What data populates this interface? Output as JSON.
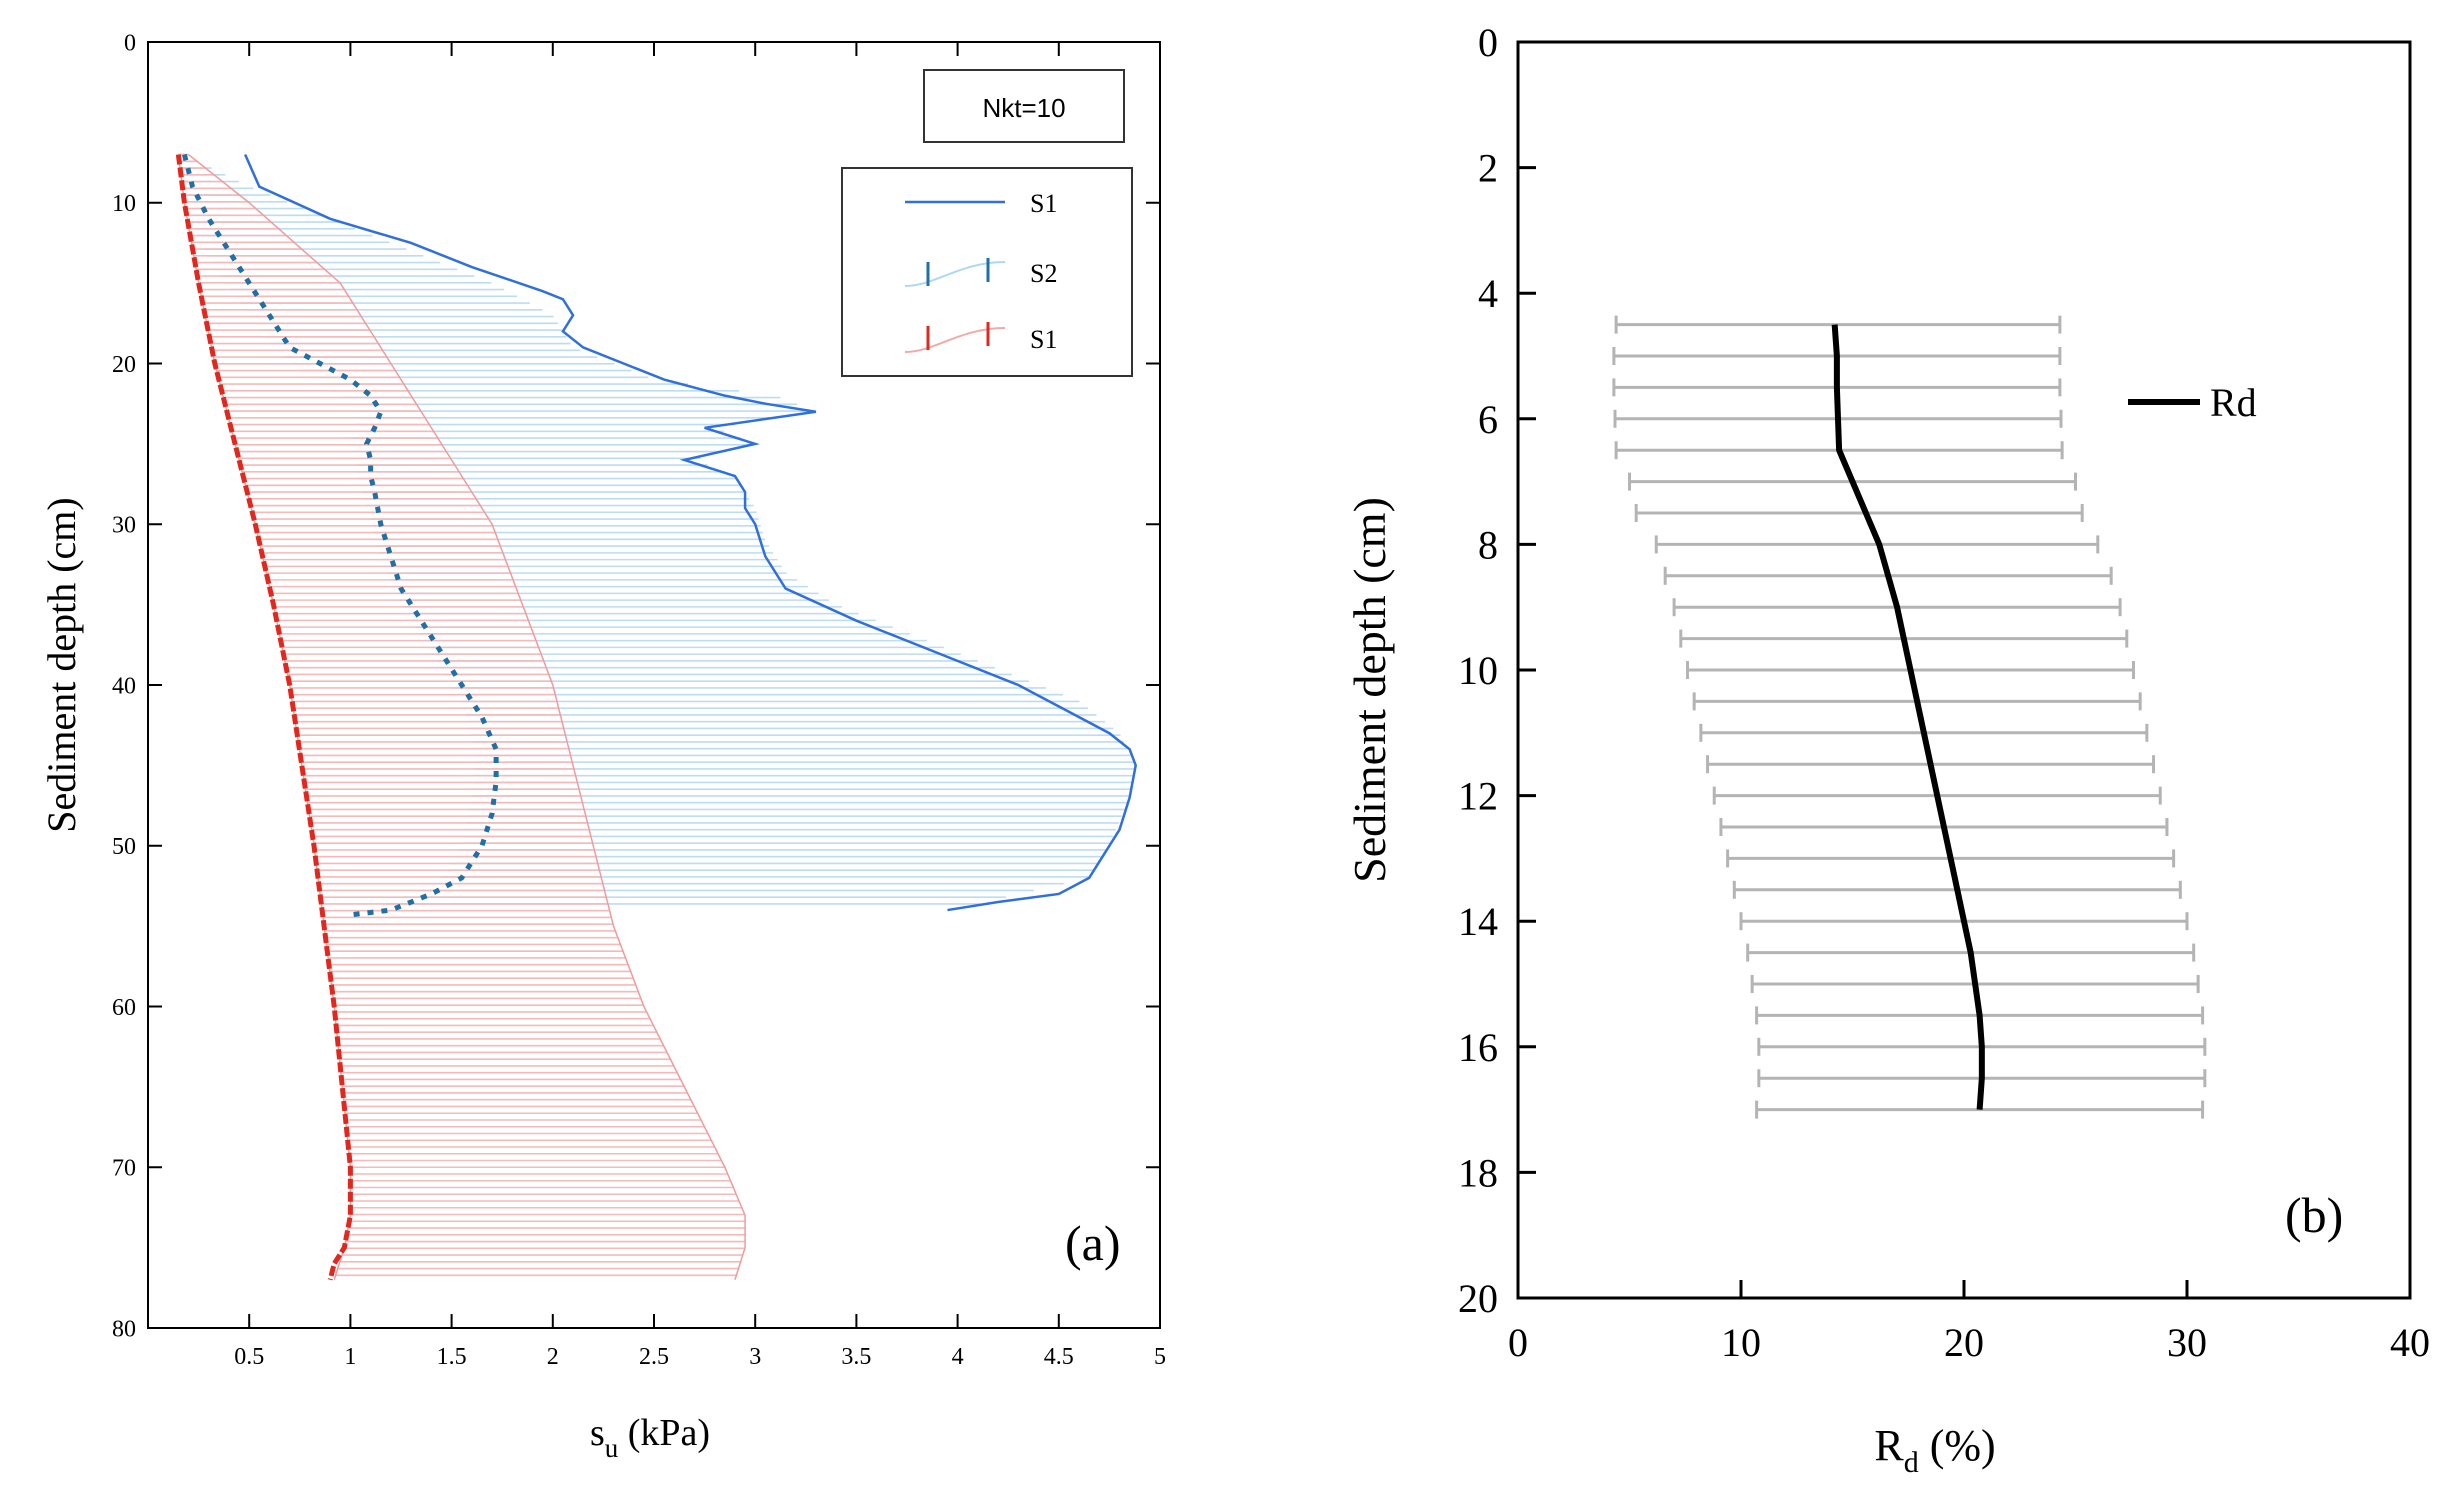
{
  "chart_data": [
    {
      "type": "line",
      "panel_label": "(a)",
      "xlabel": "s",
      "xlabel_sub": "u",
      "xlabel_unit": " (kPa)",
      "ylabel": "Sediment depth (cm)",
      "xlim": [
        0,
        5
      ],
      "ylim": [
        0,
        80
      ],
      "y_inverted": true,
      "x_ticks": [
        "0.5",
        "1",
        "1.5",
        "2",
        "2.5",
        "3",
        "3.5",
        "4",
        "4.5",
        "5"
      ],
      "y_ticks": [
        "0",
        "10",
        "20",
        "30",
        "40",
        "50",
        "60",
        "70",
        "80"
      ],
      "annotation": "Nkt=10",
      "legend": {
        "placement": "top-right",
        "entries": [
          "S1",
          "S2",
          "S1"
        ]
      },
      "colors": {
        "s1_blue": "#2f6fe0",
        "s2_teal": "#1f6fa8",
        "s1_red": "#e0281e",
        "band_blue": "#bcdcf2",
        "band_red": "#f6b9b9"
      },
      "series": [
        {
          "name": "S1",
          "style": "blue-line",
          "points": [
            [
              0.48,
              7
            ],
            [
              0.55,
              9
            ],
            [
              0.9,
              11
            ],
            [
              1.3,
              12.5
            ],
            [
              1.6,
              14
            ],
            [
              1.95,
              15.5
            ],
            [
              2.05,
              16
            ],
            [
              2.1,
              17
            ],
            [
              2.05,
              18
            ],
            [
              2.15,
              19
            ],
            [
              2.55,
              21
            ],
            [
              2.85,
              22
            ],
            [
              3.05,
              22.5
            ],
            [
              3.3,
              23
            ],
            [
              2.75,
              24
            ],
            [
              3.0,
              25
            ],
            [
              2.65,
              26
            ],
            [
              2.9,
              27
            ],
            [
              2.95,
              28
            ],
            [
              2.95,
              29
            ],
            [
              3.0,
              30
            ],
            [
              3.05,
              32
            ],
            [
              3.15,
              34
            ],
            [
              3.5,
              36
            ],
            [
              3.9,
              38
            ],
            [
              4.3,
              40
            ],
            [
              4.6,
              42
            ],
            [
              4.75,
              43
            ],
            [
              4.85,
              44
            ],
            [
              4.88,
              45
            ],
            [
              4.85,
              47
            ],
            [
              4.8,
              49
            ],
            [
              4.7,
              51
            ],
            [
              4.65,
              52
            ],
            [
              4.5,
              53
            ],
            [
              4.2,
              53.5
            ],
            [
              3.95,
              54
            ]
          ]
        },
        {
          "name": "S2",
          "style": "teal-with-band",
          "points": [
            [
              0.18,
              7
            ],
            [
              0.22,
              9
            ],
            [
              0.3,
              11
            ],
            [
              0.4,
              13
            ],
            [
              0.5,
              15
            ],
            [
              0.6,
              17
            ],
            [
              0.7,
              19
            ],
            [
              0.85,
              20
            ],
            [
              1.0,
              21
            ],
            [
              1.1,
              22
            ],
            [
              1.15,
              23
            ],
            [
              1.12,
              24
            ],
            [
              1.08,
              25
            ],
            [
              1.1,
              26
            ],
            [
              1.1,
              27
            ],
            [
              1.12,
              28
            ],
            [
              1.15,
              30
            ],
            [
              1.2,
              32
            ],
            [
              1.25,
              34
            ],
            [
              1.35,
              36
            ],
            [
              1.45,
              38
            ],
            [
              1.55,
              40
            ],
            [
              1.65,
              42
            ],
            [
              1.72,
              44
            ],
            [
              1.72,
              46
            ],
            [
              1.7,
              48
            ],
            [
              1.65,
              50
            ],
            [
              1.55,
              52
            ],
            [
              1.4,
              53
            ],
            [
              1.2,
              54
            ],
            [
              1.0,
              54.3
            ]
          ],
          "band": [
            [
              0.15,
              0.18,
              7
            ],
            [
              0.16,
              0.5,
              9
            ],
            [
              0.2,
              0.9,
              11
            ],
            [
              0.28,
              1.3,
              13
            ],
            [
              0.38,
              1.7,
              15
            ],
            [
              0.5,
              2.0,
              17
            ],
            [
              0.62,
              2.1,
              19
            ],
            [
              0.8,
              2.5,
              21
            ],
            [
              0.95,
              3.1,
              22
            ],
            [
              1.05,
              3.3,
              23
            ],
            [
              1.02,
              2.8,
              24
            ],
            [
              1.0,
              3.0,
              25
            ],
            [
              1.02,
              2.7,
              26
            ],
            [
              1.04,
              2.9,
              27
            ],
            [
              1.08,
              3.0,
              29
            ],
            [
              1.12,
              3.05,
              31
            ],
            [
              1.18,
              3.15,
              33
            ],
            [
              1.25,
              3.4,
              35
            ],
            [
              1.35,
              3.8,
              37
            ],
            [
              1.45,
              4.2,
              39
            ],
            [
              1.55,
              4.6,
              41
            ],
            [
              1.6,
              4.8,
              43
            ],
            [
              1.62,
              4.88,
              45
            ],
            [
              1.6,
              4.85,
              47
            ],
            [
              1.55,
              4.75,
              50
            ],
            [
              1.45,
              4.65,
              52
            ],
            [
              1.3,
              4.3,
              53
            ],
            [
              1.1,
              4.0,
              54
            ]
          ]
        },
        {
          "name": "S1",
          "style": "red-with-band",
          "points": [
            [
              0.15,
              7
            ],
            [
              0.18,
              10
            ],
            [
              0.25,
              15
            ],
            [
              0.33,
              20
            ],
            [
              0.43,
              25
            ],
            [
              0.53,
              30
            ],
            [
              0.62,
              35
            ],
            [
              0.7,
              40
            ],
            [
              0.76,
              45
            ],
            [
              0.82,
              50
            ],
            [
              0.87,
              55
            ],
            [
              0.92,
              60
            ],
            [
              0.96,
              65
            ],
            [
              1.0,
              70
            ],
            [
              1.0,
              73
            ],
            [
              0.97,
              75
            ],
            [
              0.92,
              76
            ],
            [
              0.9,
              77
            ]
          ],
          "band": [
            [
              0.15,
              0.2,
              7
            ],
            [
              0.18,
              0.5,
              10
            ],
            [
              0.25,
              0.95,
              15
            ],
            [
              0.33,
              1.2,
              20
            ],
            [
              0.43,
              1.45,
              25
            ],
            [
              0.53,
              1.7,
              30
            ],
            [
              0.62,
              1.85,
              35
            ],
            [
              0.7,
              2.0,
              40
            ],
            [
              0.76,
              2.1,
              45
            ],
            [
              0.82,
              2.2,
              50
            ],
            [
              0.87,
              2.3,
              55
            ],
            [
              0.92,
              2.45,
              60
            ],
            [
              0.96,
              2.65,
              65
            ],
            [
              1.0,
              2.85,
              70
            ],
            [
              1.0,
              2.95,
              73
            ],
            [
              0.97,
              2.95,
              75
            ],
            [
              0.92,
              2.9,
              77
            ]
          ]
        }
      ]
    },
    {
      "type": "line",
      "panel_label": "(b)",
      "xlabel": "R",
      "xlabel_sub": "d",
      "xlabel_unit": " (%)",
      "ylabel": "Sediment depth (cm)",
      "xlim": [
        0,
        40
      ],
      "ylim": [
        0,
        20
      ],
      "y_inverted": true,
      "x_ticks": [
        "0",
        "10",
        "20",
        "30",
        "40"
      ],
      "y_ticks": [
        "0",
        "2",
        "4",
        "6",
        "8",
        "10",
        "12",
        "14",
        "16",
        "18",
        "20"
      ],
      "legend": {
        "placement": "top-right",
        "entries": [
          "Rd"
        ]
      },
      "colors": {
        "line": "#000000",
        "error_bar": "#b4b4b4"
      },
      "series": [
        {
          "name": "Rd",
          "points": [
            [
              14.2,
              4.5
            ],
            [
              14.3,
              5.0
            ],
            [
              14.3,
              5.5
            ],
            [
              14.35,
              6.0
            ],
            [
              14.4,
              6.5
            ],
            [
              15.0,
              7.0
            ],
            [
              15.6,
              7.5
            ],
            [
              16.2,
              8.0
            ],
            [
              16.6,
              8.5
            ],
            [
              17.0,
              9.0
            ],
            [
              17.3,
              9.5
            ],
            [
              17.6,
              10.0
            ],
            [
              17.9,
              10.5
            ],
            [
              18.2,
              11.0
            ],
            [
              18.5,
              11.5
            ],
            [
              18.8,
              12.0
            ],
            [
              19.1,
              12.5
            ],
            [
              19.4,
              13.0
            ],
            [
              19.7,
              13.5
            ],
            [
              20.0,
              14.0
            ],
            [
              20.3,
              14.5
            ],
            [
              20.5,
              15.0
            ],
            [
              20.7,
              15.5
            ],
            [
              20.8,
              16.0
            ],
            [
              20.8,
              16.5
            ],
            [
              20.7,
              17.0
            ]
          ],
          "error_bars": [
            [
              4.4,
              24.3,
              4.5
            ],
            [
              4.3,
              24.3,
              5.0
            ],
            [
              4.3,
              24.3,
              5.5
            ],
            [
              4.35,
              24.35,
              6.0
            ],
            [
              4.4,
              24.4,
              6.5
            ],
            [
              5.0,
              25.0,
              7.0
            ],
            [
              5.3,
              25.3,
              7.5
            ],
            [
              6.2,
              26.0,
              8.0
            ],
            [
              6.6,
              26.6,
              8.5
            ],
            [
              7.0,
              27.0,
              9.0
            ],
            [
              7.3,
              27.3,
              9.5
            ],
            [
              7.6,
              27.6,
              10.0
            ],
            [
              7.9,
              27.9,
              10.5
            ],
            [
              8.2,
              28.2,
              11.0
            ],
            [
              8.5,
              28.5,
              11.5
            ],
            [
              8.8,
              28.8,
              12.0
            ],
            [
              9.1,
              29.1,
              12.5
            ],
            [
              9.4,
              29.4,
              13.0
            ],
            [
              9.7,
              29.7,
              13.5
            ],
            [
              10.0,
              30.0,
              14.0
            ],
            [
              10.3,
              30.3,
              14.5
            ],
            [
              10.5,
              30.5,
              15.0
            ],
            [
              10.7,
              30.7,
              15.5
            ],
            [
              10.8,
              30.8,
              16.0
            ],
            [
              10.8,
              30.8,
              16.5
            ],
            [
              10.7,
              30.7,
              17.0
            ]
          ]
        }
      ]
    }
  ]
}
